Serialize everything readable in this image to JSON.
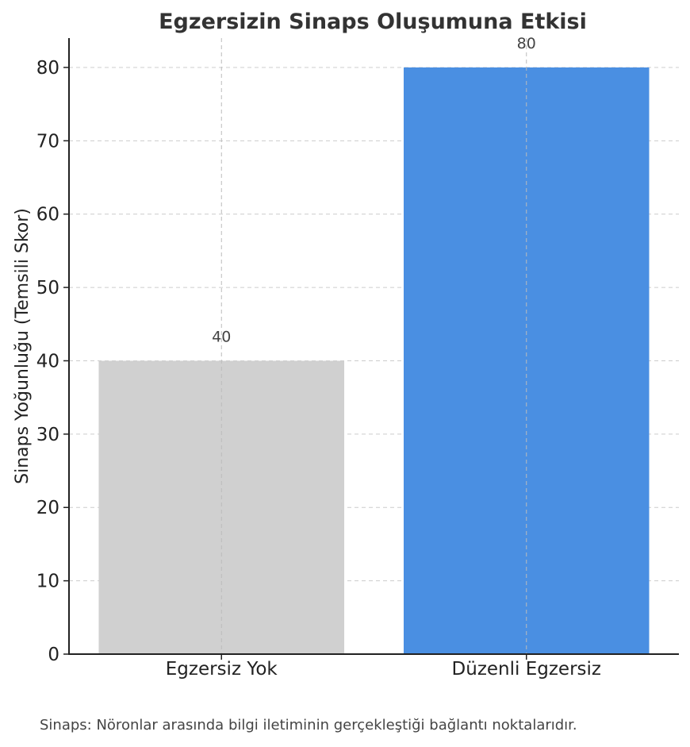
{
  "chart_data": {
    "type": "bar",
    "title": "Egzersizin Sinaps Oluşumuna Etkisi",
    "xlabel": "",
    "ylabel": "Sinaps Yoğunluğu (Temsili Skor)",
    "categories": [
      "Egzersiz Yok",
      "Düzenli Egzersiz"
    ],
    "values": [
      40,
      80
    ],
    "data_labels": [
      "40",
      "80"
    ],
    "colors": [
      "#d0d0d0",
      "#4a8fe2"
    ],
    "ylim": [
      0,
      84
    ],
    "yticks": [
      0,
      10,
      20,
      30,
      40,
      50,
      60,
      70,
      80
    ],
    "grid": true
  },
  "footnote": "Sinaps: Nöronlar arasında bilgi iletiminin gerçekleştiği bağlantı noktalarıdır."
}
